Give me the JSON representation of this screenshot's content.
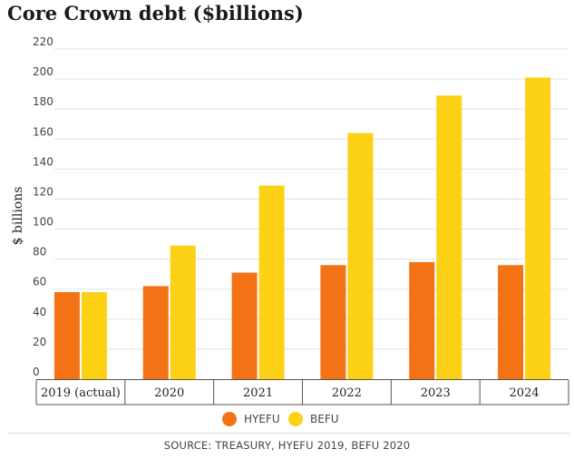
{
  "title": "Core Crown debt ($billions)",
  "source": "SOURCE: TREASURY, HYEFU 2019, BEFU 2020",
  "chart_data": {
    "type": "bar",
    "categories": [
      "2019 (actual)",
      "2020",
      "2021",
      "2022",
      "2023",
      "2024"
    ],
    "series": [
      {
        "name": "HYEFU",
        "color": "#f47216",
        "values": [
          58,
          62,
          71,
          76,
          78,
          76
        ]
      },
      {
        "name": "BEFU",
        "color": "#fcd116",
        "values": [
          58,
          89,
          129,
          164,
          189,
          201
        ]
      }
    ],
    "ylabel": "$ billions",
    "xlabel": "",
    "ylim": [
      0,
      220
    ],
    "yticks": [
      0,
      20,
      40,
      60,
      80,
      100,
      120,
      140,
      160,
      180,
      200,
      220
    ],
    "grid": true,
    "legend": "bottom-center"
  }
}
